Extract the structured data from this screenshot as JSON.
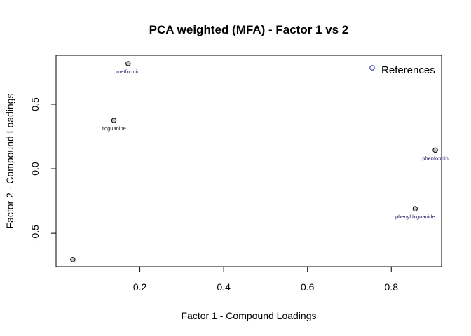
{
  "chart_data": {
    "type": "scatter",
    "title": "PCA weighted (MFA) - Factor 1 vs 2",
    "xlabel": "Factor 1 - Compound Loadings",
    "ylabel": "Factor 2 - Compound Loadings",
    "xlim": [
      0.0,
      0.92
    ],
    "ylim": [
      -0.76,
      0.88
    ],
    "x_ticks": [
      0.2,
      0.4,
      0.6,
      0.8
    ],
    "x_tick_labels": [
      "0.2",
      "0.4",
      "0.6",
      "0.8"
    ],
    "y_ticks": [
      -0.5,
      0.0,
      0.5
    ],
    "y_tick_labels": [
      "-0.5",
      "0.0",
      "0.5"
    ],
    "grid": false,
    "legend": {
      "position": "top-right",
      "label": "References"
    },
    "points": [
      {
        "label": "metformin",
        "x": 0.172,
        "y": 0.815,
        "label_color": "#1a1a66"
      },
      {
        "label": "tioguanine",
        "x": 0.138,
        "y": 0.375,
        "label_color": "#222222"
      },
      {
        "label": "phenformin",
        "x": 0.905,
        "y": 0.145,
        "label_color": "#1a1a66"
      },
      {
        "label": "phenyl biguanide",
        "x": 0.857,
        "y": -0.31,
        "label_color": "#1a1a66"
      },
      {
        "label": "",
        "x": 0.04,
        "y": -0.705,
        "label_color": "#1a1a66"
      }
    ],
    "colors": {
      "point_fill": "#c8c8c8",
      "point_stroke": "#000000",
      "legend_marker_stroke": "#1a1a99"
    }
  }
}
